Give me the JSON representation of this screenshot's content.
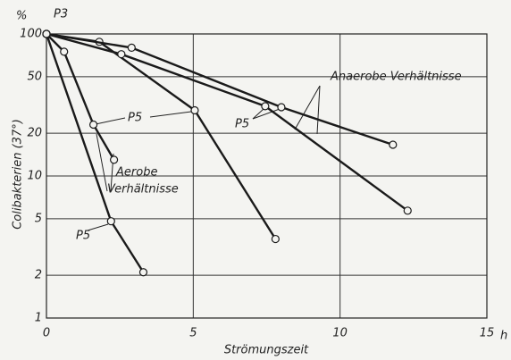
{
  "chart_data": {
    "type": "line",
    "xlabel": "Strömungszeit",
    "ylabel": "Colibakterien (37°)",
    "x_unit": "h",
    "y_unit": "%",
    "xlim": [
      0,
      15
    ],
    "xticks": [
      0,
      5,
      10,
      15
    ],
    "ylim": [
      1,
      100
    ],
    "yticks": [
      1,
      2,
      5,
      10,
      20,
      50,
      100
    ],
    "log_y": true,
    "grid": true,
    "series": [
      {
        "color": "#1a1a1a",
        "x": [
          0,
          2.2,
          3.3
        ],
        "values": [
          100,
          4.8,
          2.1
        ]
      },
      {
        "color": "#1a1a1a",
        "x": [
          0,
          0.6,
          1.6,
          2.3
        ],
        "values": [
          100,
          75,
          23,
          13
        ]
      },
      {
        "color": "#1a1a1a",
        "x": [
          0,
          1.8,
          5.05,
          7.8
        ],
        "values": [
          100,
          88,
          29,
          3.6
        ]
      },
      {
        "color": "#1a1a1a",
        "x": [
          0,
          2.9,
          8.0,
          11.8
        ],
        "values": [
          100,
          80,
          30.5,
          16.6
        ]
      },
      {
        "color": "#1a1a1a",
        "x": [
          0,
          2.55,
          7.45,
          12.3
        ],
        "values": [
          100,
          72,
          31,
          5.7
        ]
      }
    ],
    "annotations": [
      "P3",
      "P5",
      "P5",
      "P5",
      "P5",
      "Anaerobe Verhältnisse",
      "Aerobe",
      "Verhältnisse"
    ]
  }
}
